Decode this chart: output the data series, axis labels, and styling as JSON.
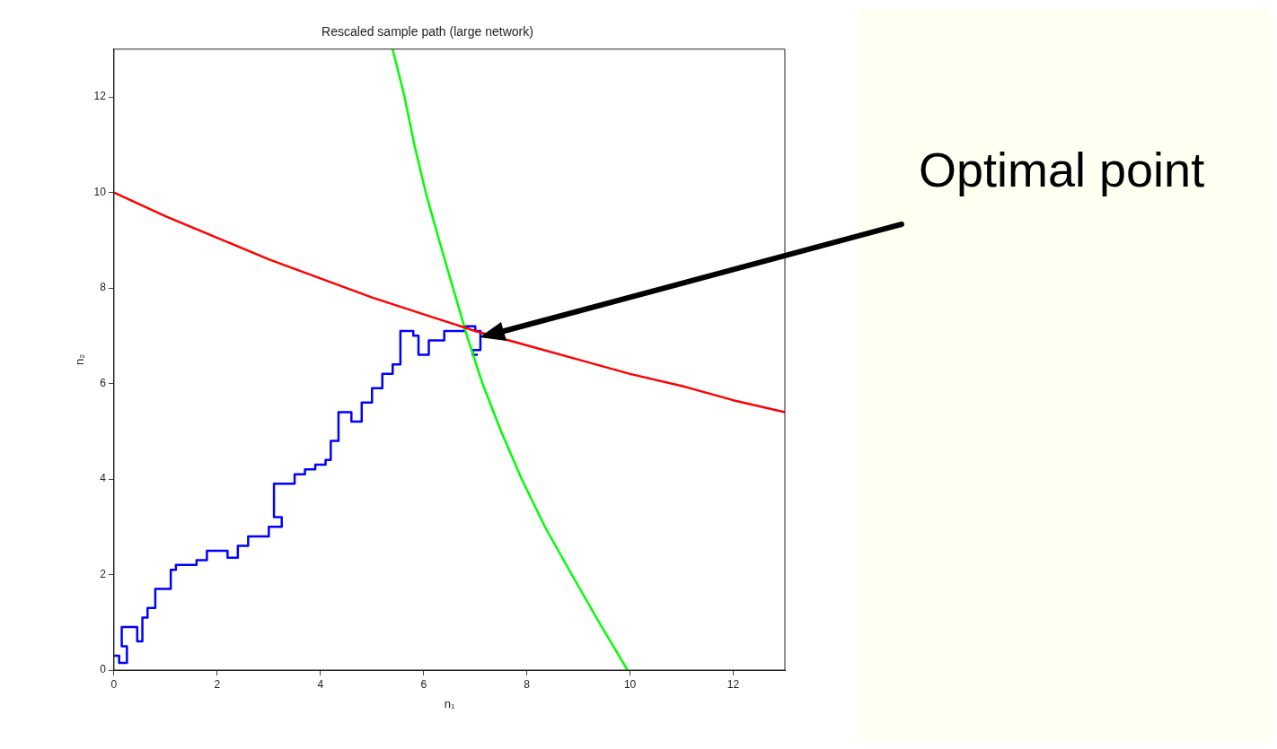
{
  "chart_data": {
    "type": "line",
    "title": "Rescaled sample path (large network)",
    "xlabel": "n₁",
    "ylabel": "n₂",
    "xlim": [
      0,
      13
    ],
    "ylim": [
      0,
      13
    ],
    "xticks": [
      0,
      2,
      4,
      6,
      8,
      10,
      12
    ],
    "yticks": [
      0,
      2,
      4,
      6,
      8,
      10,
      12
    ],
    "grid": false,
    "legend": false,
    "marker": "none",
    "line_style": "solid",
    "series": [
      {
        "color": "#ff0000",
        "x": [
          0,
          1,
          2,
          3,
          4,
          5,
          6,
          7,
          8,
          9,
          10,
          11,
          12,
          13
        ],
        "values": [
          10,
          9.5,
          9.05,
          8.6,
          8.2,
          7.8,
          7.45,
          7.1,
          6.8,
          6.5,
          6.2,
          5.95,
          5.65,
          5.4
        ]
      },
      {
        "color": "#00ff00",
        "x": [
          5.4,
          5.63,
          5.82,
          6.04,
          6.3,
          6.57,
          6.84,
          7.14,
          7.5,
          7.9,
          8.35,
          8.87,
          9.4,
          9.95
        ],
        "values": [
          13,
          12,
          11,
          10,
          9,
          8,
          7,
          6,
          5,
          4,
          3,
          2,
          1,
          0
        ]
      },
      {
        "color": "#0000ff",
        "x": [
          0,
          0.1,
          0.1,
          0.25,
          0.25,
          0.15,
          0.15,
          0.45,
          0.45,
          0.55,
          0.55,
          0.65,
          0.65,
          0.8,
          0.8,
          1.1,
          1.1,
          1.2,
          1.2,
          1.6,
          1.6,
          1.8,
          1.8,
          2.2,
          2.2,
          2.4,
          2.4,
          2.6,
          2.6,
          3.0,
          3.0,
          3.25,
          3.25,
          3.1,
          3.1,
          3.5,
          3.5,
          3.7,
          3.7,
          3.9,
          3.9,
          4.1,
          4.1,
          4.2,
          4.2,
          4.35,
          4.35,
          4.6,
          4.6,
          4.8,
          4.8,
          5.0,
          5.0,
          5.2,
          5.2,
          5.4,
          5.4,
          5.55,
          5.55,
          5.8,
          5.8,
          5.9,
          5.9,
          6.1,
          6.1,
          6.4,
          6.4,
          6.8,
          6.8,
          7.0,
          7.0,
          7.1,
          7.1,
          6.95,
          6.95,
          7.05
        ],
        "values": [
          0.3,
          0.3,
          0.15,
          0.15,
          0.5,
          0.5,
          0.9,
          0.9,
          0.6,
          0.6,
          1.1,
          1.1,
          1.3,
          1.3,
          1.7,
          1.7,
          2.1,
          2.1,
          2.2,
          2.2,
          2.3,
          2.3,
          2.5,
          2.5,
          2.35,
          2.35,
          2.6,
          2.6,
          2.8,
          2.8,
          3.0,
          3.0,
          3.2,
          3.2,
          3.9,
          3.9,
          4.1,
          4.1,
          4.2,
          4.2,
          4.3,
          4.3,
          4.4,
          4.4,
          4.8,
          4.8,
          5.4,
          5.4,
          5.2,
          5.2,
          5.6,
          5.6,
          5.9,
          5.9,
          6.2,
          6.2,
          6.4,
          6.4,
          7.1,
          7.1,
          7.0,
          7.0,
          6.6,
          6.6,
          6.9,
          6.9,
          7.1,
          7.1,
          7.2,
          7.2,
          7.1,
          7.1,
          6.7,
          6.7,
          6.6,
          6.6
        ]
      }
    ],
    "annotations": [
      "Optimal point"
    ]
  }
}
